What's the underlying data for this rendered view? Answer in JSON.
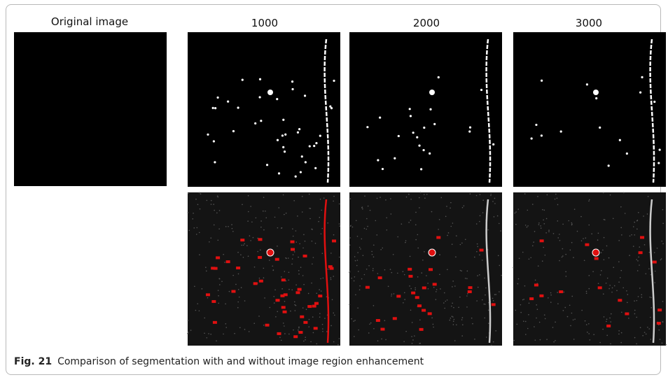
{
  "figure": {
    "panel_titles": [
      "Original image",
      "1000",
      "2000",
      "3000"
    ],
    "caption": {
      "number": "Fig. 21",
      "text": "Comparison of segmentation with and without image region enhancement"
    }
  }
}
